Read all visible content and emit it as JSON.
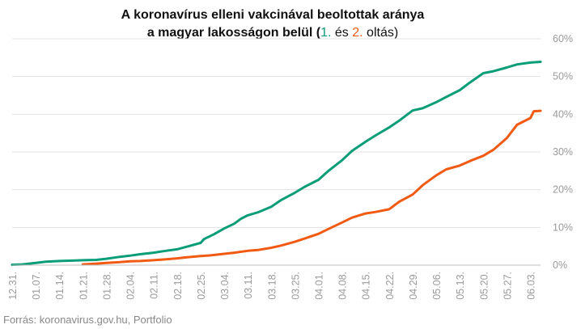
{
  "chart_data": {
    "type": "line",
    "title_line1": "A koronavírus elleni vakcinával beoltottak aránya",
    "title_line2_prefix": "a magyar lakosságon belül (",
    "title_series1_label": "1.",
    "title_and": " és ",
    "title_series2_label": "2.",
    "title_suffix": " oltás)",
    "source": "Forrás: koronavirus.gov.hu, Portfolio",
    "ylim": [
      0,
      60
    ],
    "y_ticks": [
      "0%",
      "10%",
      "20%",
      "30%",
      "40%",
      "50%",
      "60%"
    ],
    "y_tick_values": [
      0,
      10,
      20,
      30,
      40,
      50,
      60
    ],
    "x_range": [
      "2020-12-31",
      "2021-06-06"
    ],
    "x_ticks": [
      "12.31.",
      "01.07.",
      "01.14.",
      "01.21.",
      "01.28.",
      "02.04.",
      "02.11.",
      "02.18.",
      "02.25.",
      "03.04.",
      "03.11.",
      "03.18.",
      "03.25.",
      "04.01.",
      "04.08.",
      "04.15.",
      "04.22.",
      "04.29.",
      "05.06.",
      "05.13.",
      "05.20.",
      "05.27.",
      "06.03."
    ],
    "x_tick_dates": [
      "2020-12-31",
      "2021-01-07",
      "2021-01-14",
      "2021-01-21",
      "2021-01-28",
      "2021-02-04",
      "2021-02-11",
      "2021-02-18",
      "2021-02-25",
      "2021-03-04",
      "2021-03-11",
      "2021-03-18",
      "2021-03-25",
      "2021-04-01",
      "2021-04-08",
      "2021-04-15",
      "2021-04-22",
      "2021-04-29",
      "2021-05-06",
      "2021-05-13",
      "2021-05-20",
      "2021-05-27",
      "2021-06-03"
    ],
    "grid": true,
    "legend": "none",
    "series": [
      {
        "color": "#0a9d78",
        "x": [
          "2020-12-31",
          "2021-01-03",
          "2021-01-07",
          "2021-01-10",
          "2021-01-14",
          "2021-01-18",
          "2021-01-21",
          "2021-01-25",
          "2021-01-28",
          "2021-02-01",
          "2021-02-04",
          "2021-02-07",
          "2021-02-11",
          "2021-02-14",
          "2021-02-18",
          "2021-02-21",
          "2021-02-25",
          "2021-02-26",
          "2021-03-01",
          "2021-03-04",
          "2021-03-07",
          "2021-03-09",
          "2021-03-11",
          "2021-03-14",
          "2021-03-18",
          "2021-03-21",
          "2021-03-25",
          "2021-03-28",
          "2021-04-01",
          "2021-04-04",
          "2021-04-08",
          "2021-04-11",
          "2021-04-15",
          "2021-04-18",
          "2021-04-22",
          "2021-04-25",
          "2021-04-29",
          "2021-05-02",
          "2021-05-06",
          "2021-05-09",
          "2021-05-13",
          "2021-05-16",
          "2021-05-20",
          "2021-05-23",
          "2021-05-27",
          "2021-05-30",
          "2021-06-03",
          "2021-06-06"
        ],
        "values": [
          0.1,
          0.2,
          0.6,
          0.9,
          1.1,
          1.2,
          1.3,
          1.4,
          1.7,
          2.2,
          2.5,
          2.9,
          3.3,
          3.7,
          4.2,
          4.9,
          5.9,
          6.9,
          8.2,
          9.7,
          11.0,
          12.3,
          13.2,
          14.0,
          15.5,
          17.3,
          19.2,
          20.8,
          22.6,
          25.0,
          27.8,
          30.3,
          32.7,
          34.4,
          36.5,
          38.3,
          41.0,
          41.6,
          43.2,
          44.6,
          46.4,
          48.4,
          50.9,
          51.4,
          52.4,
          53.2,
          53.7,
          53.9
        ]
      },
      {
        "color": "#f05a13",
        "x": [
          "2021-01-21",
          "2021-01-25",
          "2021-01-28",
          "2021-02-01",
          "2021-02-04",
          "2021-02-07",
          "2021-02-11",
          "2021-02-14",
          "2021-02-18",
          "2021-02-21",
          "2021-02-25",
          "2021-02-28",
          "2021-03-04",
          "2021-03-07",
          "2021-03-11",
          "2021-03-14",
          "2021-03-18",
          "2021-03-21",
          "2021-03-25",
          "2021-03-28",
          "2021-04-01",
          "2021-04-04",
          "2021-04-08",
          "2021-04-11",
          "2021-04-15",
          "2021-04-18",
          "2021-04-22",
          "2021-04-25",
          "2021-04-29",
          "2021-05-02",
          "2021-05-06",
          "2021-05-09",
          "2021-05-13",
          "2021-05-16",
          "2021-05-20",
          "2021-05-23",
          "2021-05-27",
          "2021-05-30",
          "2021-06-03",
          "2021-06-04",
          "2021-06-06"
        ],
        "values": [
          0.2,
          0.4,
          0.6,
          0.8,
          1.0,
          1.1,
          1.3,
          1.5,
          1.8,
          2.1,
          2.4,
          2.6,
          3.0,
          3.3,
          3.8,
          4.0,
          4.6,
          5.2,
          6.2,
          7.1,
          8.3,
          9.6,
          11.3,
          12.6,
          13.7,
          14.1,
          14.8,
          16.8,
          18.7,
          21.2,
          23.8,
          25.4,
          26.4,
          27.6,
          29.0,
          30.6,
          33.7,
          37.2,
          39.0,
          40.8,
          40.9
        ]
      }
    ]
  }
}
